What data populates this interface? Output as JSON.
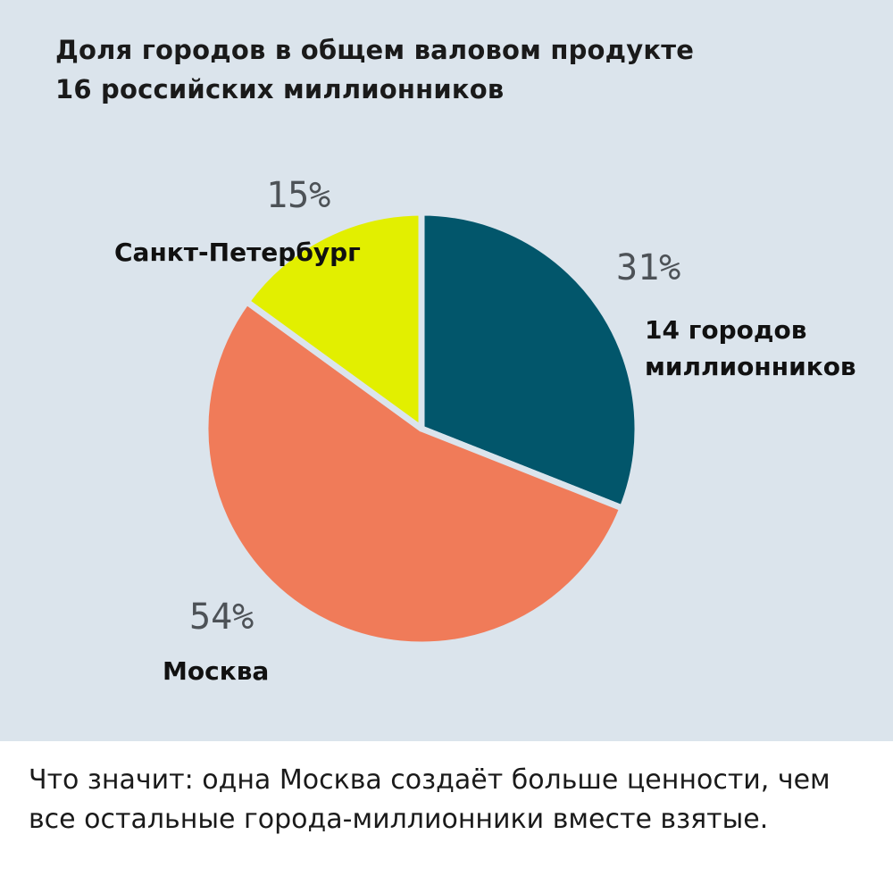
{
  "chart_data": {
    "type": "pie",
    "title": "Доля городов в общем валовом продукте 16 российских миллионников",
    "title_lines": [
      "Доля городов в общем валовом продукте",
      "16 российских миллионников"
    ],
    "slices": [
      {
        "label_lines": [
          "14 городов",
          "миллионников"
        ],
        "value": 31,
        "value_label": "31%",
        "color": "#02566b"
      },
      {
        "label_lines": [
          "Москва"
        ],
        "value": 54,
        "value_label": "54%",
        "color": "#f07b59"
      },
      {
        "label_lines": [
          "Санкт-Петербург"
        ],
        "value": 15,
        "value_label": "15%",
        "color": "#e2ef00"
      }
    ],
    "background_color": "#dbe4ec",
    "separator_color": "#dbe4ec"
  },
  "caption": "Что значит: одна Москва создаёт больше ценности, чем все остальные города-миллионники вместе взятые."
}
